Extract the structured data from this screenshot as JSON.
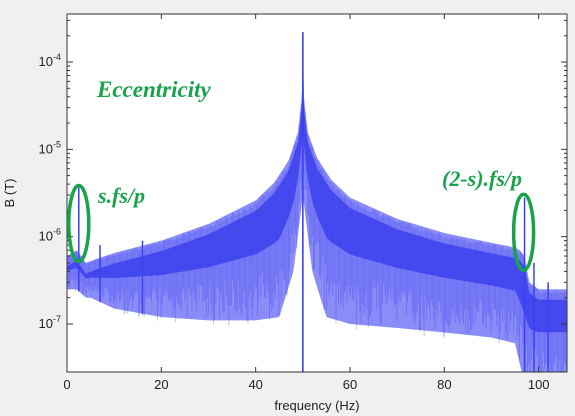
{
  "chart_data": {
    "type": "area",
    "title": "",
    "xlabel": "frequency (Hz)",
    "ylabel": "B (T)",
    "xlim": [
      0,
      106
    ],
    "ylim_log10": [
      -7.55,
      -3.45
    ],
    "yscale": "log",
    "x_ticks": [
      0,
      20,
      40,
      60,
      80,
      100
    ],
    "x_tick_labels": [
      "0",
      "20",
      "40",
      "60",
      "80",
      "100"
    ],
    "y_ticks_log10": [
      -7,
      -6,
      -5,
      -4
    ],
    "y_tick_base": "10",
    "y_tick_exponents": [
      "-7",
      "-6",
      "-5",
      "-4"
    ],
    "grid": false,
    "fundamental_hz": 50,
    "peak_value": 0.00022,
    "series": [
      {
        "color": "#2a2ff0",
        "upper_envelope": {
          "x": [
            0,
            2,
            3,
            4,
            6,
            10,
            20,
            30,
            40,
            44,
            47,
            49,
            49.8,
            50,
            50.2,
            51,
            53,
            56,
            60,
            70,
            80,
            90,
            95,
            96,
            97,
            98,
            100,
            106
          ],
          "y": [
            6e-07,
            7e-07,
            6e-07,
            5e-07,
            5.5e-07,
            6.5e-07,
            9e-07,
            1.4e-06,
            2.6e-06,
            4.2e-06,
            7.5e-06,
            1.6e-05,
            4e-05,
            0.00022,
            4e-05,
            1.6e-05,
            8e-06,
            4.5e-06,
            2.8e-06,
            1.6e-06,
            1.1e-06,
            8.5e-07,
            7.5e-07,
            7e-07,
            6e-07,
            3e-07,
            2.5e-07,
            2.5e-07
          ]
        },
        "lower_envelope": {
          "x": [
            0,
            2,
            4,
            5,
            10,
            20,
            30,
            40,
            45,
            48,
            50,
            52,
            55,
            60,
            70,
            80,
            90,
            95,
            97,
            100,
            106
          ],
          "y": [
            2.5e-07,
            2.5e-07,
            2e-07,
            2e-07,
            1.5e-07,
            1.2e-07,
            1.1e-07,
            1.1e-07,
            1.2e-07,
            4e-07,
            3e-06,
            4e-07,
            1.2e-07,
            1e-07,
            9e-08,
            8e-08,
            7e-08,
            6e-08,
            2e-08,
            2e-08,
            2e-08
          ]
        },
        "spikes": [
          {
            "x": 2.5,
            "y": 3.8e-06
          },
          {
            "x": 7,
            "y": 8e-07
          },
          {
            "x": 16,
            "y": 9e-07
          },
          {
            "x": 97,
            "y": 2.8e-06
          },
          {
            "x": 99,
            "y": 5e-07
          },
          {
            "x": 102,
            "y": 3e-07
          }
        ]
      }
    ],
    "annotations": {
      "title_note": "Eccentricity",
      "left_label": "s.fs/p",
      "right_label": "(2-s).fs/p",
      "color": "#17a34a",
      "left_ellipse_center": {
        "x": 2.5,
        "y_log10": -5.85
      },
      "right_ellipse_center": {
        "x": 96.8,
        "y_log10": -5.95
      }
    }
  }
}
